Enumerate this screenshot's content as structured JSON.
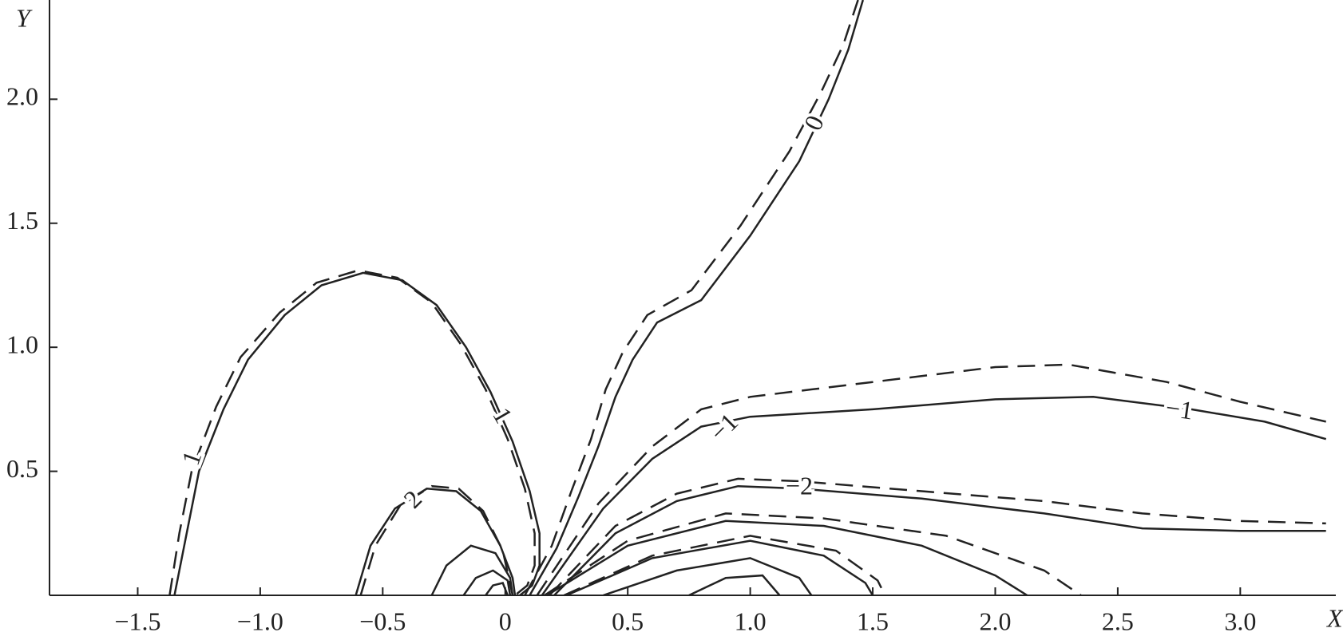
{
  "chart_data": {
    "type": "contour",
    "x_label": "X",
    "y_label": "Y",
    "xlim": [
      -1.86,
      3.39
    ],
    "ylim": [
      0,
      2.4
    ],
    "xticks": [
      {
        "value": -1.5,
        "label": "−1.5"
      },
      {
        "value": -1,
        "label": "−1.0"
      },
      {
        "value": -0.5,
        "label": "−0.5"
      },
      0,
      0.5,
      {
        "value": 1,
        "label": "1.0"
      },
      1.5,
      {
        "value": 2,
        "label": "2.0"
      },
      2.5,
      {
        "value": 3,
        "label": "3.0"
      }
    ],
    "yticks": [
      0.5,
      {
        "value": 1,
        "label": "1.0"
      },
      1.5,
      {
        "value": 2,
        "label": "2.0"
      }
    ],
    "color": "#222222",
    "series": [
      {
        "style": "solid",
        "labels": [
          "1",
          "1"
        ],
        "x": [
          -1.35,
          -1.3,
          -1.25,
          -1.15,
          -1.05,
          -0.9,
          -0.75,
          -0.58,
          -0.42,
          -0.28,
          -0.16,
          -0.06,
          0.03,
          0.1,
          0.14,
          0.14,
          0.11,
          0.06
        ],
        "y": [
          0,
          0.25,
          0.5,
          0.75,
          0.95,
          1.13,
          1.25,
          1.3,
          1.27,
          1.17,
          1.0,
          0.82,
          0.62,
          0.42,
          0.25,
          0.12,
          0.04,
          0
        ]
      },
      {
        "style": "dashed",
        "labels": [],
        "x": [
          -1.37,
          -1.33,
          -1.28,
          -1.18,
          -1.08,
          -0.92,
          -0.77,
          -0.6,
          -0.44,
          -0.3,
          -0.18,
          -0.08,
          0.01,
          0.08,
          0.12,
          0.12,
          0.09,
          0.04
        ],
        "y": [
          0,
          0.25,
          0.5,
          0.76,
          0.96,
          1.14,
          1.26,
          1.31,
          1.28,
          1.18,
          1.01,
          0.83,
          0.63,
          0.43,
          0.25,
          0.12,
          0.04,
          0
        ]
      },
      {
        "style": "solid",
        "labels": [
          "0"
        ],
        "x": [
          0.1,
          0.21,
          0.3,
          0.38,
          0.45,
          0.52,
          0.62,
          0.8,
          1.0,
          1.2,
          1.32,
          1.4,
          1.46
        ],
        "y": [
          0,
          0.19,
          0.4,
          0.6,
          0.8,
          0.95,
          1.1,
          1.19,
          1.45,
          1.75,
          2.0,
          2.2,
          2.4
        ]
      },
      {
        "style": "dashed",
        "labels": [],
        "x": [
          0.08,
          0.19,
          0.27,
          0.35,
          0.41,
          0.48,
          0.58,
          0.76,
          0.96,
          1.16,
          1.29,
          1.38,
          1.44
        ],
        "y": [
          0,
          0.2,
          0.42,
          0.63,
          0.83,
          0.98,
          1.13,
          1.23,
          1.49,
          1.79,
          2.03,
          2.22,
          2.4
        ]
      },
      {
        "style": "solid",
        "labels": [
          "−1",
          "−1"
        ],
        "x": [
          0.15,
          0.4,
          0.6,
          0.8,
          1.0,
          1.5,
          2.0,
          2.4,
          2.8,
          3.1,
          3.35
        ],
        "y": [
          0,
          0.35,
          0.55,
          0.68,
          0.72,
          0.75,
          0.79,
          0.8,
          0.75,
          0.7,
          0.63
        ]
      },
      {
        "style": "dashed",
        "labels": [],
        "x": [
          0.13,
          0.38,
          0.6,
          0.8,
          1.0,
          1.5,
          2.0,
          2.3,
          2.7,
          3.0,
          3.35
        ],
        "y": [
          0,
          0.37,
          0.6,
          0.75,
          0.8,
          0.86,
          0.92,
          0.93,
          0.86,
          0.78,
          0.7
        ]
      },
      {
        "style": "solid",
        "labels": [
          "−2"
        ],
        "x": [
          0.2,
          0.45,
          0.7,
          0.95,
          1.2,
          1.7,
          2.2,
          2.6,
          3.0,
          3.35
        ],
        "y": [
          0,
          0.25,
          0.38,
          0.44,
          0.43,
          0.39,
          0.33,
          0.27,
          0.26,
          0.26
        ]
      },
      {
        "style": "dashed",
        "labels": [],
        "x": [
          0.18,
          0.45,
          0.7,
          0.95,
          1.2,
          1.7,
          2.2,
          2.6,
          3.0,
          3.35
        ],
        "y": [
          0,
          0.28,
          0.41,
          0.47,
          0.46,
          0.42,
          0.38,
          0.33,
          0.3,
          0.29
        ]
      },
      {
        "style": "solid",
        "labels": [
          "2"
        ],
        "x": [
          -0.61,
          -0.55,
          -0.45,
          -0.32,
          -0.2,
          -0.1,
          -0.02,
          0.03,
          0.04
        ],
        "y": [
          0,
          0.2,
          0.35,
          0.43,
          0.42,
          0.34,
          0.2,
          0.07,
          0
        ]
      },
      {
        "style": "dashed",
        "labels": [],
        "x": [
          -0.59,
          -0.53,
          -0.43,
          -0.3,
          -0.19,
          -0.09,
          -0.01,
          0.03
        ],
        "y": [
          0,
          0.2,
          0.36,
          0.44,
          0.43,
          0.34,
          0.18,
          0
        ]
      },
      {
        "style": "solid",
        "labels": [],
        "x": [
          -0.3,
          -0.24,
          -0.14,
          -0.04,
          0.02,
          0.03
        ],
        "y": [
          0,
          0.12,
          0.2,
          0.17,
          0.07,
          0
        ]
      },
      {
        "style": "solid",
        "labels": [],
        "x": [
          -0.17,
          -0.12,
          -0.05,
          0.01,
          0.02
        ],
        "y": [
          0,
          0.07,
          0.1,
          0.06,
          0
        ]
      },
      {
        "style": "solid",
        "labels": [],
        "x": [
          -0.08,
          -0.05,
          -0.01,
          0.01
        ],
        "y": [
          0,
          0.04,
          0.05,
          0
        ]
      },
      {
        "style": "solid",
        "labels": [],
        "x": [
          0.17,
          0.5,
          0.9,
          1.3,
          1.7,
          2.0,
          2.13
        ],
        "y": [
          0,
          0.2,
          0.3,
          0.28,
          0.2,
          0.08,
          0
        ]
      },
      {
        "style": "dashed",
        "labels": [],
        "x": [
          0.16,
          0.5,
          0.9,
          1.3,
          1.8,
          2.2,
          2.35
        ],
        "y": [
          0,
          0.22,
          0.33,
          0.31,
          0.24,
          0.1,
          0
        ]
      },
      {
        "style": "solid",
        "labels": [],
        "x": [
          0.25,
          0.6,
          1.0,
          1.3,
          1.47,
          1.5
        ],
        "y": [
          0,
          0.15,
          0.22,
          0.16,
          0.05,
          0
        ]
      },
      {
        "style": "dashed",
        "labels": [],
        "x": [
          0.24,
          0.6,
          1.0,
          1.35,
          1.52,
          1.55
        ],
        "y": [
          0,
          0.16,
          0.24,
          0.18,
          0.06,
          0
        ]
      },
      {
        "style": "solid",
        "labels": [],
        "x": [
          0.4,
          0.7,
          1.0,
          1.2,
          1.25
        ],
        "y": [
          0,
          0.1,
          0.15,
          0.07,
          0
        ]
      },
      {
        "style": "solid",
        "labels": [],
        "x": [
          0.75,
          0.9,
          1.05,
          1.12
        ],
        "y": [
          0,
          0.07,
          0.08,
          0
        ]
      }
    ]
  }
}
